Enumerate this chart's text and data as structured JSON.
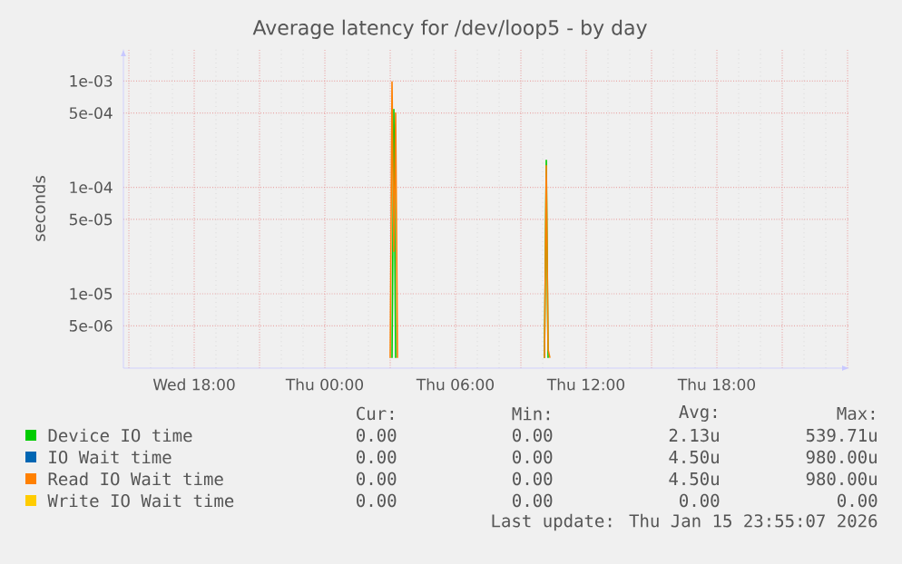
{
  "chart_data": {
    "type": "line",
    "title": "Average latency for /dev/loop5 - by day",
    "ylabel": "seconds",
    "log": "y",
    "grid": true,
    "legend": "bottom",
    "marker": "none",
    "line_style": "solid",
    "xlim": [
      "2026-01-14T14:45",
      "2026-01-16T00:05"
    ],
    "xticks": [
      {
        "value": "2026-01-14T15:00",
        "label": null
      },
      {
        "value": "2026-01-14T18:00",
        "label": "Wed 18:00"
      },
      {
        "value": "2026-01-14T21:00",
        "label": null
      },
      {
        "value": "2026-01-15T00:00",
        "label": "Thu 00:00"
      },
      {
        "value": "2026-01-15T03:00",
        "label": null
      },
      {
        "value": "2026-01-15T06:00",
        "label": "Thu 06:00"
      },
      {
        "value": "2026-01-15T09:00",
        "label": null
      },
      {
        "value": "2026-01-15T12:00",
        "label": "Thu 12:00"
      },
      {
        "value": "2026-01-15T15:00",
        "label": null
      },
      {
        "value": "2026-01-15T18:00",
        "label": "Thu 18:00"
      },
      {
        "value": "2026-01-15T21:00",
        "label": null
      },
      {
        "value": "2026-01-16T00:00",
        "label": null
      }
    ],
    "ylim": [
      2e-06,
      0.002
    ],
    "yticks": [
      {
        "value": 5e-06,
        "label": "5e-06"
      },
      {
        "value": 1e-05,
        "label": "1e-05"
      },
      {
        "value": 5e-05,
        "label": "5e-05"
      },
      {
        "value": 0.0001,
        "label": "1e-04"
      },
      {
        "value": 0.0005,
        "label": "5e-04"
      },
      {
        "value": 0.001,
        "label": "1e-03"
      }
    ],
    "series": [
      {
        "name": "Device IO time",
        "color": "#00cc00",
        "x": [
          "2026-01-15T03:05",
          "2026-01-15T03:10",
          "2026-01-15T03:15",
          "2026-01-15T06:00",
          "2026-01-15T10:05",
          "2026-01-15T10:10",
          "2026-01-15T10:15"
        ],
        "values": [
          2.5e-06,
          0.00054,
          2.5e-06,
          null,
          2.5e-06,
          0.00018,
          2.5e-06
        ]
      },
      {
        "name": "IO Wait time",
        "color": "#0066b3",
        "values": [
          null
        ]
      },
      {
        "name": "Read IO Wait time",
        "color": "#ff8000",
        "x": [
          "2026-01-15T03:00",
          "2026-01-15T03:05",
          "2026-01-15T03:10",
          "2026-01-15T03:15",
          "2026-01-15T03:20",
          "2026-01-15T06:00",
          "2026-01-15T10:05",
          "2026-01-15T10:10",
          "2026-01-15T10:15",
          "2026-01-15T10:20"
        ],
        "values": [
          2.5e-06,
          0.00098,
          2.5e-05,
          0.0005,
          2.5e-06,
          null,
          2.5e-06,
          0.00016,
          3e-06,
          2.5e-06
        ]
      },
      {
        "name": "Write IO Wait time",
        "color": "#ffcc00",
        "values": [
          null
        ]
      }
    ],
    "annotations": [
      "Cur:",
      "Min:",
      "Avg:",
      "Max:",
      "0.00",
      "0.00",
      "2.13u",
      "539.71u",
      "0.00",
      "0.00",
      "4.50u",
      "980.00u",
      "0.00",
      "0.00",
      "4.50u",
      "980.00u",
      "0.00",
      "0.00",
      "0.00",
      "0.00",
      "Last update: Thu Jan 15 23:55:07 2026"
    ]
  }
}
